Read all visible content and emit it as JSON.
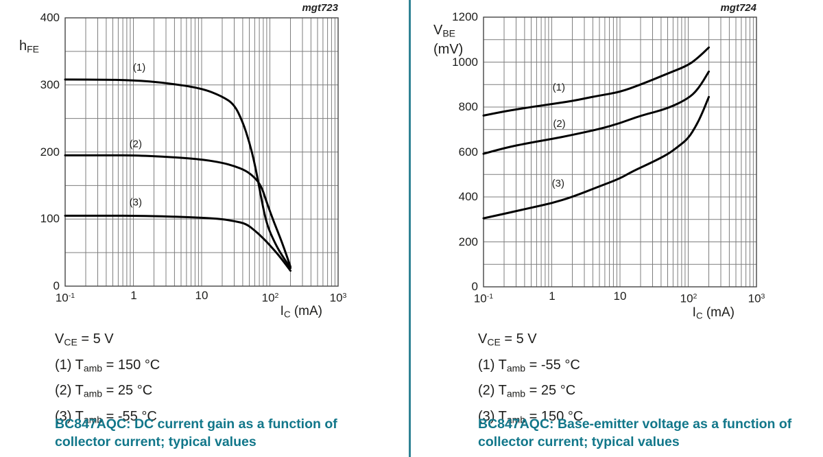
{
  "page": {
    "background": "#ffffff",
    "divider_color": "#2f8294",
    "caption_color": "#12778a",
    "text_color": "#1d1d1b",
    "grid_color": "#7d7d7d",
    "border_color": "#454545",
    "curve_color": "#000000"
  },
  "chart_data": [
    {
      "type": "line",
      "watermark": "mgt723",
      "title": "BC847AQC: DC current gain as a function of collector current; typical values",
      "xlabel": "IC (mA)",
      "ylabel": "hFE",
      "x_scale": "log",
      "xlim": [
        0.1,
        1000
      ],
      "ylim": [
        0,
        400
      ],
      "y_grid_step": 50,
      "grid": true,
      "xlabel_segments": [
        {
          "t": "I"
        },
        {
          "s": "C"
        },
        {
          "t": " (mA)"
        }
      ],
      "ylabel_lines": [
        [
          {
            "t": "h"
          },
          {
            "s": "FE"
          }
        ]
      ],
      "x_ticks": [
        {
          "v": 0.1,
          "t": "10",
          "e": "-1"
        },
        {
          "v": 1,
          "t": "1"
        },
        {
          "v": 10,
          "t": "10"
        },
        {
          "v": 100,
          "t": "10",
          "e": "2"
        },
        {
          "v": 1000,
          "t": "10",
          "e": "3"
        }
      ],
      "y_ticks": [
        {
          "v": 400,
          "t": "400"
        },
        {
          "v": 300,
          "t": "300"
        },
        {
          "v": 200,
          "t": "200"
        },
        {
          "v": 100,
          "t": "100"
        },
        {
          "v": 0,
          "t": "0"
        }
      ],
      "conditions": [
        "VCE = 5 V",
        "(1) Tamb = 150 °C",
        "(2) Tamb = 25 °C",
        "(3) Tamb = -55 °C"
      ],
      "conditions_segments": [
        [
          {
            "t": "V"
          },
          {
            "s": "CE"
          },
          {
            "t": " = 5 V"
          }
        ],
        [
          {
            "t": "(1) T"
          },
          {
            "s": "amb"
          },
          {
            "t": " = 150 °C"
          }
        ],
        [
          {
            "t": "(2) T"
          },
          {
            "s": "amb"
          },
          {
            "t": " = 25 °C"
          }
        ],
        [
          {
            "t": "(3) T"
          },
          {
            "s": "amb"
          },
          {
            "t": " = -55 °C"
          }
        ]
      ],
      "annotations": [
        {
          "text": "(1)",
          "x": 1.22,
          "y": 321
        },
        {
          "text": "(2)",
          "x": 1.08,
          "y": 207
        },
        {
          "text": "(3)",
          "x": 1.08,
          "y": 120
        }
      ],
      "series": [
        {
          "name": "(1) Tamb = 150 °C",
          "points": [
            [
              0.1,
              308
            ],
            [
              0.3,
              308
            ],
            [
              1,
              307
            ],
            [
              3,
              303
            ],
            [
              10,
              295
            ],
            [
              20,
              283
            ],
            [
              30,
              271
            ],
            [
              40,
              245
            ],
            [
              50,
              215
            ],
            [
              60,
              183
            ],
            [
              75,
              130
            ],
            [
              90,
              92
            ],
            [
              120,
              63
            ],
            [
              150,
              46
            ],
            [
              200,
              27
            ]
          ]
        },
        {
          "name": "(2) Tamb = 25 °C",
          "points": [
            [
              0.1,
              195
            ],
            [
              0.5,
              195
            ],
            [
              1,
              195
            ],
            [
              3,
              193
            ],
            [
              10,
              189
            ],
            [
              20,
              184
            ],
            [
              30,
              179
            ],
            [
              45,
              172
            ],
            [
              60,
              162
            ],
            [
              75,
              149
            ],
            [
              90,
              125
            ],
            [
              115,
              95
            ],
            [
              150,
              66
            ],
            [
              200,
              29
            ]
          ]
        },
        {
          "name": "(3) Tamb = -55 °C",
          "points": [
            [
              0.1,
              105
            ],
            [
              0.5,
              105
            ],
            [
              1,
              105
            ],
            [
              3,
              104
            ],
            [
              10,
              102
            ],
            [
              20,
              100
            ],
            [
              30,
              97
            ],
            [
              45,
              93
            ],
            [
              60,
              83
            ],
            [
              75,
              74
            ],
            [
              92,
              65
            ],
            [
              120,
              52
            ],
            [
              150,
              40
            ],
            [
              200,
              23
            ]
          ]
        }
      ]
    },
    {
      "type": "line",
      "watermark": "mgt724",
      "title": "BC847AQC: Base-emitter voltage as a function of collector current; typical values",
      "xlabel": "IC (mA)",
      "ylabel": "VBE (mV)",
      "x_scale": "log",
      "xlim": [
        0.1,
        1000
      ],
      "ylim": [
        0,
        1200
      ],
      "y_grid_step": 100,
      "grid": true,
      "xlabel_segments": [
        {
          "t": "I"
        },
        {
          "s": "C"
        },
        {
          "t": " (mA)"
        }
      ],
      "ylabel_lines": [
        [
          {
            "t": "V"
          },
          {
            "s": "BE"
          }
        ],
        [
          {
            "t": "(mV)"
          }
        ]
      ],
      "x_ticks": [
        {
          "v": 0.1,
          "t": "10",
          "e": "-1"
        },
        {
          "v": 1,
          "t": "1"
        },
        {
          "v": 10,
          "t": "10"
        },
        {
          "v": 100,
          "t": "10",
          "e": "2"
        },
        {
          "v": 1000,
          "t": "10",
          "e": "3"
        }
      ],
      "y_ticks": [
        {
          "v": 1200,
          "t": "1200"
        },
        {
          "v": 1000,
          "t": "1000"
        },
        {
          "v": 800,
          "t": "800"
        },
        {
          "v": 600,
          "t": "600"
        },
        {
          "v": 400,
          "t": "400"
        },
        {
          "v": 200,
          "t": "200"
        },
        {
          "v": 0,
          "t": "0"
        }
      ],
      "conditions": [
        "VCE = 5 V",
        "(1) Tamb = -55 °C",
        "(2) Tamb = 25 °C",
        "(3) Tamb = 150 °C"
      ],
      "conditions_segments": [
        [
          {
            "t": "V"
          },
          {
            "s": "CE"
          },
          {
            "t": " = 5 V"
          }
        ],
        [
          {
            "t": "(1) T"
          },
          {
            "s": "amb"
          },
          {
            "t": " = -55 °C"
          }
        ],
        [
          {
            "t": "(2) T"
          },
          {
            "s": "amb"
          },
          {
            "t": " = 25 °C"
          }
        ],
        [
          {
            "t": "(3) T"
          },
          {
            "s": "amb"
          },
          {
            "t": " = 150 °C"
          }
        ]
      ],
      "annotations": [
        {
          "text": "(1)",
          "x": 1.27,
          "y": 873
        },
        {
          "text": "(2)",
          "x": 1.29,
          "y": 711
        },
        {
          "text": "(3)",
          "x": 1.24,
          "y": 446
        }
      ],
      "series": [
        {
          "name": "(1) Tamb = -55 °C",
          "points": [
            [
              0.1,
              762
            ],
            [
              0.2,
              781
            ],
            [
              0.5,
              800
            ],
            [
              1,
              813
            ],
            [
              2,
              827
            ],
            [
              3,
              838
            ],
            [
              5,
              851
            ],
            [
              10,
              867
            ],
            [
              20,
              900
            ],
            [
              50,
              949
            ],
            [
              100,
              986
            ],
            [
              140,
              1020
            ],
            [
              200,
              1065
            ]
          ]
        },
        {
          "name": "(2) Tamb = 25 °C",
          "points": [
            [
              0.1,
              592
            ],
            [
              0.2,
              618
            ],
            [
              0.5,
              642
            ],
            [
              1,
              658
            ],
            [
              2,
              676
            ],
            [
              5,
              702
            ],
            [
              10,
              728
            ],
            [
              20,
              762
            ],
            [
              50,
              793
            ],
            [
              100,
              838
            ],
            [
              140,
              880
            ],
            [
              200,
              958
            ]
          ]
        },
        {
          "name": "(3) Tamb = 150 °C",
          "points": [
            [
              0.1,
              305
            ],
            [
              0.2,
              325
            ],
            [
              0.5,
              352
            ],
            [
              1,
              372
            ],
            [
              2,
              400
            ],
            [
              5,
              447
            ],
            [
              10,
              482
            ],
            [
              15,
              513
            ],
            [
              30,
              555
            ],
            [
              50,
              590
            ],
            [
              70,
              622
            ],
            [
              100,
              660
            ],
            [
              130,
              715
            ],
            [
              160,
              772
            ],
            [
              200,
              845
            ]
          ]
        }
      ]
    }
  ]
}
